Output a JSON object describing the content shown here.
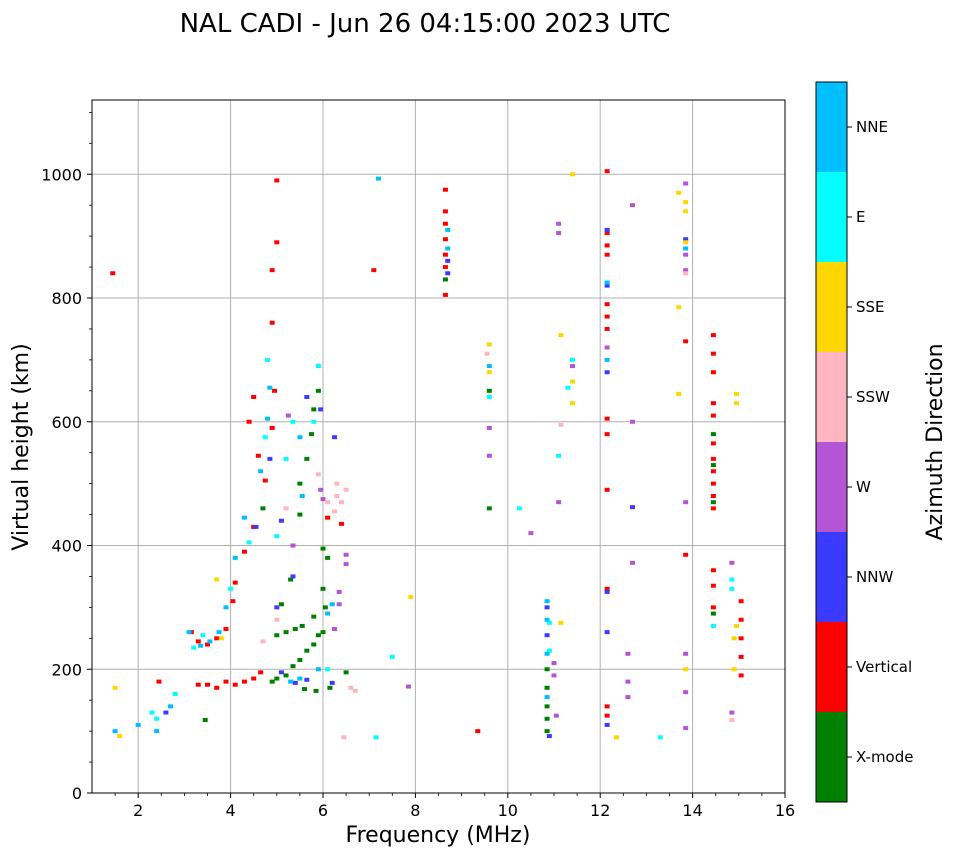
{
  "chart_data": {
    "type": "scatter",
    "title": "NAL CADI - Jun 26 04:15:00 2023 UTC",
    "xlabel": "Frequency (MHz)",
    "ylabel": "Virtual height (km)",
    "xlim": [
      1,
      16
    ],
    "ylim": [
      0,
      1120
    ],
    "xticks": [
      2,
      4,
      6,
      8,
      10,
      12,
      14,
      16
    ],
    "yticks": [
      0,
      200,
      400,
      600,
      800,
      1000
    ],
    "grid": true,
    "colorbar": {
      "label": "Azimuth Direction",
      "categories": [
        {
          "name": "X-mode",
          "color": "#008000"
        },
        {
          "name": "Vertical",
          "color": "#ff0000"
        },
        {
          "name": "NNW",
          "color": "#3b3bff"
        },
        {
          "name": "W",
          "color": "#b455d6"
        },
        {
          "name": "SSW",
          "color": "#ffb6c1"
        },
        {
          "name": "SSE",
          "color": "#ffd700"
        },
        {
          "name": "E",
          "color": "#00ffff"
        },
        {
          "name": "NNE",
          "color": "#00bfff"
        }
      ]
    },
    "series": [
      {
        "name": "Vertical",
        "points": [
          [
            1.45,
            840
          ],
          [
            2.45,
            180
          ],
          [
            3.3,
            175
          ],
          [
            3.5,
            175
          ],
          [
            3.7,
            170
          ],
          [
            3.9,
            180
          ],
          [
            4.1,
            175
          ],
          [
            4.3,
            180
          ],
          [
            4.5,
            185
          ],
          [
            4.65,
            195
          ],
          [
            3.15,
            260
          ],
          [
            3.3,
            245
          ],
          [
            3.5,
            240
          ],
          [
            3.7,
            250
          ],
          [
            3.9,
            265
          ],
          [
            4.05,
            310
          ],
          [
            4.1,
            340
          ],
          [
            4.3,
            390
          ],
          [
            4.5,
            430
          ],
          [
            4.6,
            545
          ],
          [
            4.75,
            505
          ],
          [
            4.9,
            590
          ],
          [
            5.0,
            990
          ],
          [
            5.0,
            890
          ],
          [
            4.9,
            845
          ],
          [
            4.9,
            760
          ],
          [
            7.1,
            845
          ],
          [
            8.65,
            975
          ],
          [
            8.65,
            940
          ],
          [
            8.65,
            920
          ],
          [
            8.65,
            895
          ],
          [
            8.65,
            870
          ],
          [
            8.65,
            850
          ],
          [
            8.65,
            805
          ],
          [
            9.35,
            100
          ],
          [
            12.15,
            1005
          ],
          [
            12.15,
            905
          ],
          [
            12.15,
            885
          ],
          [
            12.15,
            870
          ],
          [
            12.15,
            790
          ],
          [
            12.15,
            770
          ],
          [
            12.15,
            750
          ],
          [
            12.15,
            605
          ],
          [
            12.15,
            580
          ],
          [
            12.15,
            490
          ],
          [
            12.15,
            330
          ],
          [
            12.15,
            140
          ],
          [
            12.15,
            125
          ],
          [
            13.85,
            730
          ],
          [
            13.85,
            385
          ],
          [
            14.45,
            740
          ],
          [
            14.45,
            710
          ],
          [
            14.45,
            680
          ],
          [
            14.45,
            630
          ],
          [
            14.45,
            610
          ],
          [
            14.45,
            565
          ],
          [
            14.45,
            540
          ],
          [
            14.45,
            520
          ],
          [
            14.45,
            500
          ],
          [
            14.45,
            480
          ],
          [
            14.45,
            460
          ],
          [
            14.45,
            360
          ],
          [
            14.45,
            335
          ],
          [
            14.45,
            300
          ],
          [
            15.05,
            310
          ],
          [
            15.05,
            280
          ],
          [
            15.05,
            250
          ],
          [
            15.05,
            220
          ],
          [
            15.05,
            190
          ],
          [
            6.4,
            435
          ],
          [
            6.1,
            445
          ],
          [
            4.4,
            600
          ],
          [
            4.5,
            640
          ],
          [
            4.95,
            650
          ]
        ]
      },
      {
        "name": "X-mode",
        "points": [
          [
            4.9,
            180
          ],
          [
            5.0,
            185
          ],
          [
            5.2,
            190
          ],
          [
            5.35,
            205
          ],
          [
            5.5,
            215
          ],
          [
            5.65,
            230
          ],
          [
            5.8,
            240
          ],
          [
            5.9,
            255
          ],
          [
            6.0,
            260
          ],
          [
            6.05,
            300
          ],
          [
            6.0,
            330
          ],
          [
            5.8,
            285
          ],
          [
            5.55,
            270
          ],
          [
            5.4,
            265
          ],
          [
            5.2,
            260
          ],
          [
            5.0,
            255
          ],
          [
            5.1,
            305
          ],
          [
            5.5,
            450
          ],
          [
            5.5,
            500
          ],
          [
            5.65,
            540
          ],
          [
            5.75,
            580
          ],
          [
            5.8,
            620
          ],
          [
            5.9,
            650
          ],
          [
            6.1,
            380
          ],
          [
            6.0,
            395
          ],
          [
            6.15,
            170
          ],
          [
            6.5,
            195
          ],
          [
            5.85,
            165
          ],
          [
            5.6,
            168
          ],
          [
            3.45,
            118
          ],
          [
            8.65,
            830
          ],
          [
            9.6,
            460
          ],
          [
            9.6,
            650
          ],
          [
            10.85,
            200
          ],
          [
            10.85,
            170
          ],
          [
            10.85,
            140
          ],
          [
            10.85,
            120
          ],
          [
            10.85,
            100
          ],
          [
            14.45,
            290
          ],
          [
            14.45,
            470
          ],
          [
            14.45,
            530
          ],
          [
            14.45,
            580
          ],
          [
            5.3,
            345
          ],
          [
            4.7,
            460
          ]
        ]
      },
      {
        "name": "NNW",
        "points": [
          [
            2.6,
            130
          ],
          [
            5.1,
            195
          ],
          [
            5.4,
            178
          ],
          [
            5.65,
            183
          ],
          [
            6.2,
            178
          ],
          [
            5.95,
            620
          ],
          [
            6.25,
            575
          ],
          [
            5.65,
            640
          ],
          [
            5.35,
            350
          ],
          [
            5.0,
            300
          ],
          [
            8.7,
            860
          ],
          [
            8.7,
            840
          ],
          [
            10.85,
            300
          ],
          [
            10.85,
            255
          ],
          [
            10.9,
            92
          ],
          [
            12.15,
            910
          ],
          [
            12.15,
            820
          ],
          [
            12.15,
            680
          ],
          [
            12.15,
            325
          ],
          [
            12.15,
            260
          ],
          [
            12.15,
            110
          ],
          [
            12.7,
            462
          ],
          [
            13.85,
            895
          ],
          [
            4.85,
            540
          ],
          [
            5.1,
            440
          ],
          [
            4.55,
            430
          ]
        ]
      },
      {
        "name": "W",
        "points": [
          [
            6.5,
            385
          ],
          [
            6.5,
            370
          ],
          [
            6.25,
            265
          ],
          [
            5.95,
            490
          ],
          [
            6.0,
            475
          ],
          [
            5.35,
            400
          ],
          [
            5.25,
            610
          ],
          [
            7.85,
            172
          ],
          [
            9.6,
            545
          ],
          [
            9.6,
            590
          ],
          [
            10.5,
            420
          ],
          [
            11.0,
            210
          ],
          [
            11.0,
            190
          ],
          [
            11.05,
            125
          ],
          [
            11.1,
            470
          ],
          [
            11.1,
            920
          ],
          [
            11.1,
            905
          ],
          [
            11.4,
            690
          ],
          [
            12.15,
            720
          ],
          [
            12.6,
            155
          ],
          [
            12.6,
            225
          ],
          [
            12.6,
            180
          ],
          [
            12.7,
            372
          ],
          [
            12.7,
            600
          ],
          [
            12.7,
            950
          ],
          [
            13.85,
            470
          ],
          [
            13.85,
            985
          ],
          [
            13.85,
            870
          ],
          [
            13.85,
            845
          ],
          [
            13.85,
            225
          ],
          [
            13.85,
            163
          ],
          [
            13.85,
            105
          ],
          [
            14.85,
            130
          ],
          [
            14.85,
            372
          ],
          [
            6.35,
            325
          ],
          [
            6.35,
            305
          ]
        ]
      },
      {
        "name": "SSW",
        "points": [
          [
            6.3,
            480
          ],
          [
            6.3,
            500
          ],
          [
            6.4,
            470
          ],
          [
            6.5,
            490
          ],
          [
            6.25,
            455
          ],
          [
            6.6,
            170
          ],
          [
            6.45,
            90
          ],
          [
            6.1,
            470
          ],
          [
            5.9,
            515
          ],
          [
            5.2,
            460
          ],
          [
            4.7,
            245
          ],
          [
            5.0,
            280
          ],
          [
            11.15,
            595
          ],
          [
            13.85,
            840
          ],
          [
            14.85,
            118
          ],
          [
            9.55,
            710
          ],
          [
            6.7,
            165
          ]
        ]
      },
      {
        "name": "SSE",
        "points": [
          [
            1.5,
            170
          ],
          [
            1.6,
            92
          ],
          [
            3.7,
            345
          ],
          [
            3.8,
            250
          ],
          [
            7.9,
            317
          ],
          [
            9.6,
            725
          ],
          [
            9.6,
            680
          ],
          [
            11.15,
            275
          ],
          [
            11.15,
            740
          ],
          [
            11.4,
            630
          ],
          [
            11.4,
            1000
          ],
          [
            11.4,
            665
          ],
          [
            12.35,
            90
          ],
          [
            13.7,
            645
          ],
          [
            13.7,
            785
          ],
          [
            13.7,
            970
          ],
          [
            13.85,
            955
          ],
          [
            13.85,
            940
          ],
          [
            13.85,
            890
          ],
          [
            13.85,
            200
          ],
          [
            14.95,
            645
          ],
          [
            14.95,
            630
          ],
          [
            14.95,
            270
          ],
          [
            14.9,
            250
          ],
          [
            14.9,
            200
          ]
        ]
      },
      {
        "name": "E",
        "points": [
          [
            2.3,
            130
          ],
          [
            2.4,
            120
          ],
          [
            2.8,
            160
          ],
          [
            3.2,
            235
          ],
          [
            3.4,
            255
          ],
          [
            4.0,
            330
          ],
          [
            4.4,
            405
          ],
          [
            4.8,
            700
          ],
          [
            4.75,
            575
          ],
          [
            5.0,
            415
          ],
          [
            5.2,
            540
          ],
          [
            5.35,
            600
          ],
          [
            5.8,
            600
          ],
          [
            5.9,
            690
          ],
          [
            6.1,
            200
          ],
          [
            7.15,
            90
          ],
          [
            7.5,
            220
          ],
          [
            10.25,
            460
          ],
          [
            11.1,
            545
          ],
          [
            11.3,
            655
          ],
          [
            11.4,
            700
          ],
          [
            13.3,
            90
          ],
          [
            14.45,
            270
          ],
          [
            14.85,
            345
          ],
          [
            14.85,
            330
          ],
          [
            9.6,
            640
          ],
          [
            10.9,
            230
          ],
          [
            10.9,
            275
          ]
        ]
      },
      {
        "name": "NNE",
        "points": [
          [
            1.5,
            100
          ],
          [
            2.0,
            110
          ],
          [
            2.4,
            100
          ],
          [
            2.7,
            140
          ],
          [
            3.1,
            260
          ],
          [
            3.35,
            238
          ],
          [
            3.55,
            245
          ],
          [
            3.75,
            260
          ],
          [
            3.9,
            300
          ],
          [
            4.1,
            380
          ],
          [
            4.3,
            445
          ],
          [
            4.65,
            520
          ],
          [
            4.8,
            605
          ],
          [
            4.85,
            655
          ],
          [
            5.5,
            575
          ],
          [
            5.55,
            480
          ],
          [
            5.9,
            200
          ],
          [
            6.2,
            305
          ],
          [
            6.1,
            290
          ],
          [
            7.2,
            993
          ],
          [
            8.7,
            910
          ],
          [
            8.7,
            880
          ],
          [
            9.6,
            690
          ],
          [
            10.85,
            310
          ],
          [
            10.85,
            280
          ],
          [
            10.85,
            225
          ],
          [
            10.85,
            155
          ],
          [
            12.15,
            825
          ],
          [
            12.15,
            700
          ],
          [
            13.85,
            880
          ],
          [
            5.3,
            180
          ],
          [
            5.5,
            185
          ]
        ]
      }
    ]
  }
}
